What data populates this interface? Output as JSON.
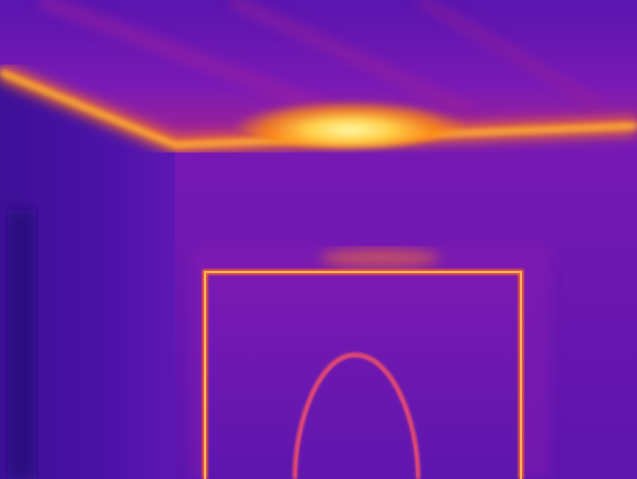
{
  "image": {
    "kind": "thermal-infrared-photo",
    "palette": "ironbow",
    "subject": "interior-room-corner-with-ceiling-and-doorway",
    "colors": {
      "cold": "#2e0a84",
      "cool": "#5a14b4",
      "mid": "#9a1fb6",
      "warm": "#d0356c",
      "hot": "#ff8a10",
      "hottest": "#fff27a"
    }
  }
}
